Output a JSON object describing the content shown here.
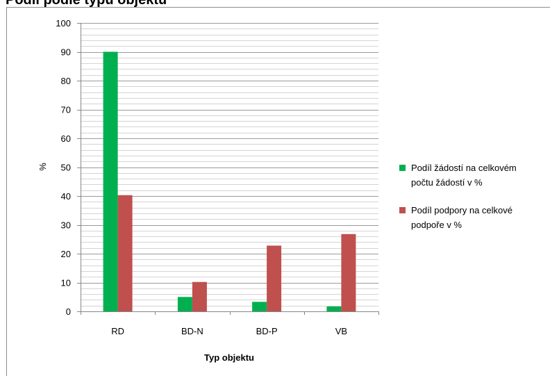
{
  "page_title": "Podíl podle typu objektu",
  "chart_data": {
    "type": "bar",
    "title": "",
    "categories": [
      "RD",
      "BD-N",
      "BD-P",
      "VB"
    ],
    "series": [
      {
        "name": "Podíl žádostí na celkovém počtu žádostí v %",
        "color": "#00b050",
        "values": [
          90,
          5,
          3.3,
          1.7
        ]
      },
      {
        "name": "Podíl podpory na celkové podpoře v %",
        "color": "#c0504d",
        "values": [
          40.3,
          10.2,
          22.8,
          26.8
        ]
      }
    ],
    "xlabel": "Typ objektu",
    "ylabel": "%",
    "ylim": [
      0,
      100
    ],
    "yticks": [
      0,
      10,
      20,
      30,
      40,
      50,
      60,
      70,
      80,
      90,
      100
    ],
    "minor_gridlines_step": 2,
    "grid": true,
    "legend_position": "right",
    "legend_labels": [
      [
        "Podíl žádostí na celkovém",
        "počtu žádostí v %"
      ],
      [
        "Podíl podpory na celkové",
        "podpoře v %"
      ]
    ]
  }
}
